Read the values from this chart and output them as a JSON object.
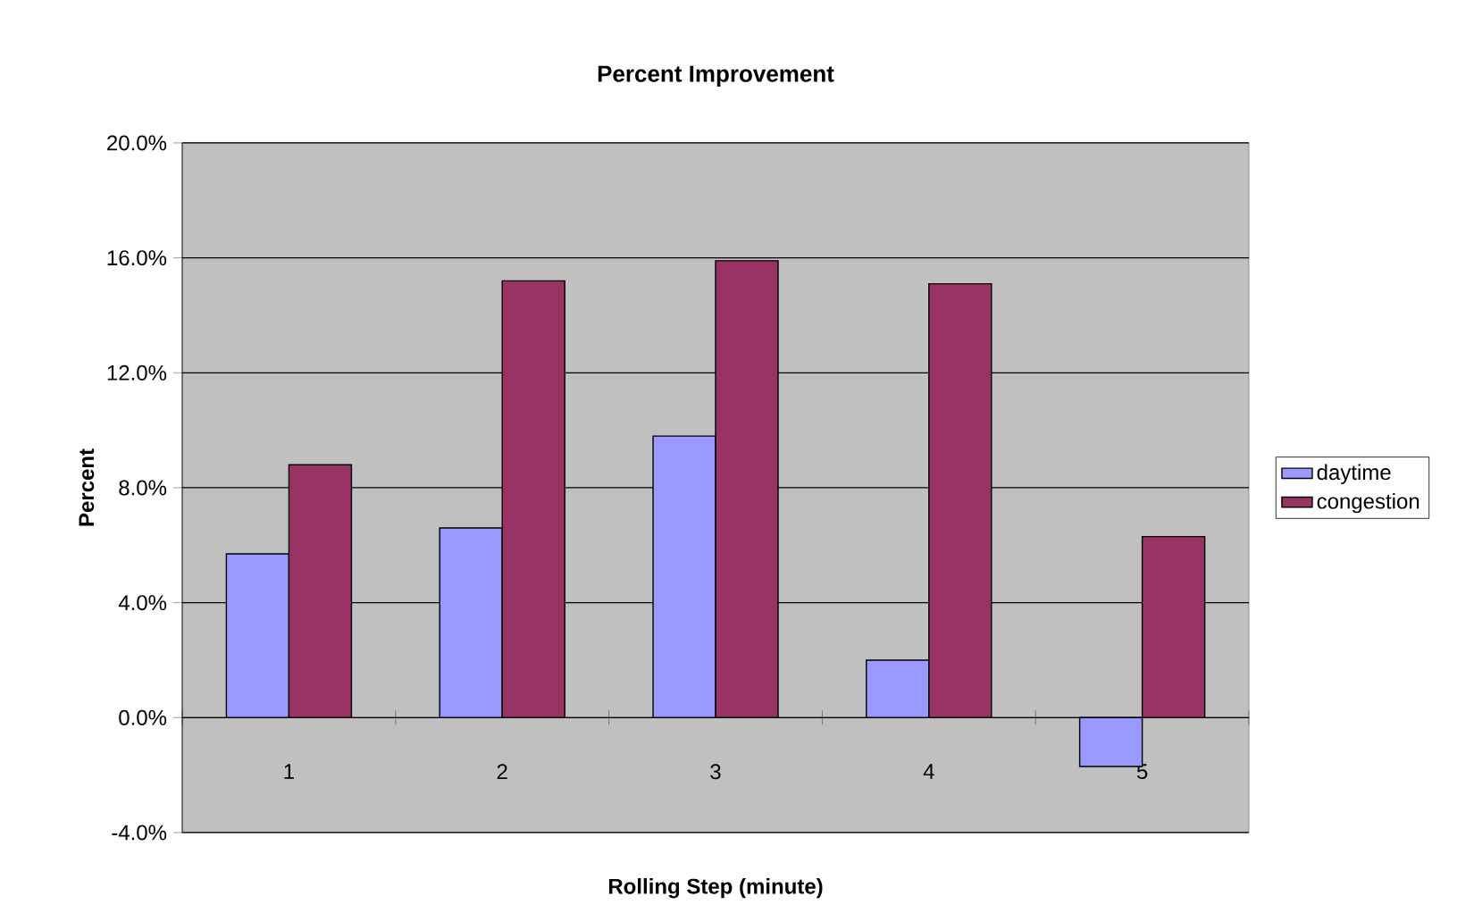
{
  "chart_data": {
    "type": "bar",
    "title": "Percent Improvement",
    "xlabel": "Rolling Step (minute)",
    "ylabel": "Percent",
    "categories": [
      "1",
      "2",
      "3",
      "4",
      "5"
    ],
    "series": [
      {
        "name": "daytime",
        "color": "#9999ff",
        "values": [
          5.7,
          6.6,
          9.8,
          2.0,
          -1.7
        ]
      },
      {
        "name": "congestion",
        "color": "#993366",
        "values": [
          8.8,
          15.2,
          15.9,
          15.1,
          6.3
        ]
      }
    ],
    "ylim": [
      -4,
      20
    ],
    "yticks": [
      {
        "value": -4,
        "label": "-4.0%"
      },
      {
        "value": 0,
        "label": "0.0%"
      },
      {
        "value": 4,
        "label": "4.0%"
      },
      {
        "value": 8,
        "label": "8.0%"
      },
      {
        "value": 12,
        "label": "12.0%"
      },
      {
        "value": 16,
        "label": "16.0%"
      },
      {
        "value": 20,
        "label": "20.0%"
      }
    ],
    "grid": "y",
    "legend": "right"
  }
}
